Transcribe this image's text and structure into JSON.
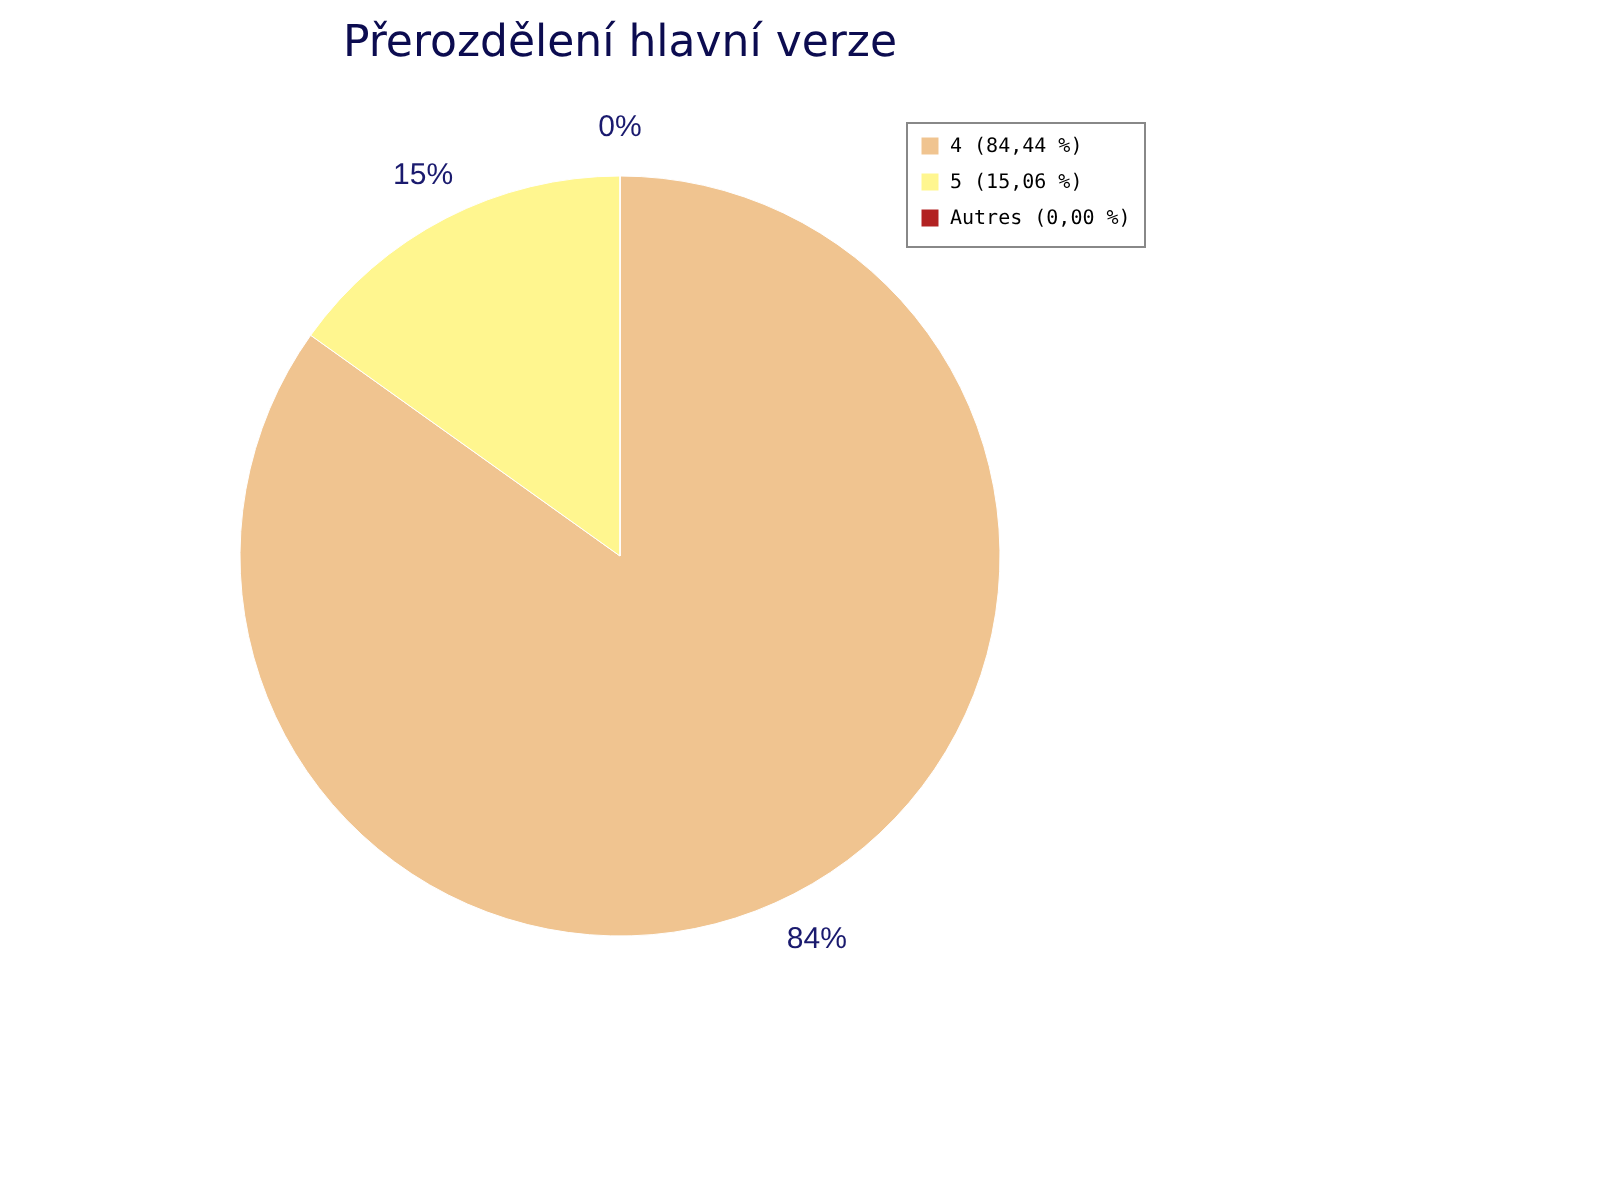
{
  "chart_data": {
    "type": "pie",
    "title": "Přerozdělení hlavní verze",
    "categories": [
      "4 (84,44 %)",
      "5 (15,06 %)",
      "Autres (0,00 %)"
    ],
    "values": [
      84.44,
      15.06,
      0.0
    ],
    "colors": [
      "#f0c490",
      "#fff68f",
      "#b22222"
    ],
    "value_labels": [
      "84%",
      "15%",
      "0%"
    ],
    "legend": "top right"
  }
}
